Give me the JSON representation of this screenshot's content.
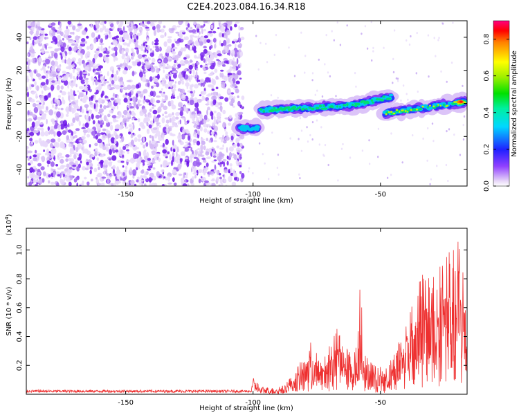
{
  "title": "C2E4.2023.084.16.34.R18",
  "chart_data": [
    {
      "type": "heatmap",
      "xlabel": "Height of straight line (km)",
      "ylabel": "Frequency (Hz)",
      "xlim": [
        -189,
        -16
      ],
      "ylim": [
        -50,
        50
      ],
      "xticks": [
        -150,
        -100,
        -50
      ],
      "yticks": [
        -40,
        -20,
        0,
        20,
        40
      ],
      "colorbar": {
        "label": "Normalized spectral amplitude",
        "range": [
          0.0,
          0.9
        ],
        "ticks": [
          0.0,
          0.2,
          0.4,
          0.6,
          0.8
        ]
      },
      "features": [
        {
          "name": "low-amplitude noise field",
          "x_range": [
            -189,
            -104
          ],
          "y_range": [
            -50,
            50
          ],
          "amplitude": 0.05
        },
        {
          "name": "strong band segment 1",
          "points": [
            [
              -105,
              -15
            ],
            [
              -98,
              -15
            ]
          ],
          "amplitude": 0.35
        },
        {
          "name": "strong band segment 2",
          "points": [
            [
              -97,
              -4
            ],
            [
              -80,
              -3
            ],
            [
              -60,
              -1
            ],
            [
              -46,
              4
            ]
          ],
          "amplitude": 0.45
        },
        {
          "name": "strong band segment 3",
          "points": [
            [
              -48,
              -6
            ],
            [
              -35,
              -3
            ],
            [
              -20,
              0
            ],
            [
              -17,
              1
            ]
          ],
          "amplitude": 0.9
        }
      ]
    },
    {
      "type": "line",
      "xlabel": "Height of straight line (km)",
      "ylabel": "SNR (10 * v/v)",
      "y_multiplier": "(x10^4)",
      "y_multiplier_base": "(x10",
      "y_multiplier_exp": "4",
      "y_multiplier_close": ")",
      "xlim": [
        -189,
        -16
      ],
      "ylim": [
        0,
        11500
      ],
      "xticks": [
        -150,
        -100,
        -50
      ],
      "yticks": [
        0.2,
        0.4,
        0.6,
        0.8,
        1.0
      ],
      "series": [
        {
          "name": "SNR",
          "color": "#ee3030",
          "envelope": [
            [
              -189,
              250
            ],
            [
              -105,
              250
            ],
            [
              -101,
              300
            ],
            [
              -100,
              1200
            ],
            [
              -97,
              500
            ],
            [
              -90,
              500
            ],
            [
              -84,
              1400
            ],
            [
              -80,
              2700
            ],
            [
              -78,
              3800
            ],
            [
              -75,
              3000
            ],
            [
              -72,
              2600
            ],
            [
              -69,
              4200
            ],
            [
              -66,
              4900
            ],
            [
              -62,
              3000
            ],
            [
              -59,
              3400
            ],
            [
              -58,
              8800
            ],
            [
              -56,
              2700
            ],
            [
              -53,
              2200
            ],
            [
              -48,
              1800
            ],
            [
              -45,
              2700
            ],
            [
              -42,
              4200
            ],
            [
              -40,
              5900
            ],
            [
              -36,
              7700
            ],
            [
              -33,
              8800
            ],
            [
              -31,
              9300
            ],
            [
              -28,
              8400
            ],
            [
              -24,
              10300
            ],
            [
              -22,
              9400
            ],
            [
              -20,
              11500
            ],
            [
              -18,
              9000
            ],
            [
              -16,
              9000
            ]
          ]
        }
      ]
    }
  ]
}
